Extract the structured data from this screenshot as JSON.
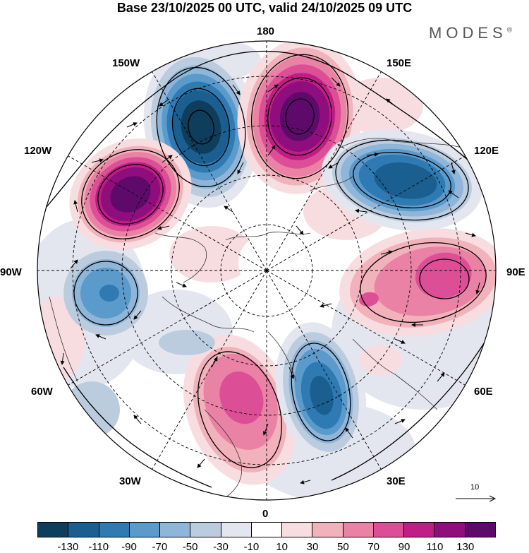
{
  "title": "Base 23/10/2025 00 UTC, valid 24/10/2025 09 UTC",
  "logo": {
    "text": "MODES",
    "mark": "®"
  },
  "longitude_labels": {
    "lon_180": "180",
    "lon_150e": "150E",
    "lon_120e": "120E",
    "lon_90e": "90E",
    "lon_60e": "60E",
    "lon_30e": "30E",
    "lon_0": "0",
    "lon_30w": "30W",
    "lon_60w": "60W",
    "lon_90w": "90W",
    "lon_120w": "120W",
    "lon_150w": "150W"
  },
  "wind_reference": {
    "label": "10"
  },
  "colorbar": {
    "colors": [
      "#0f3d5c",
      "#1a5f8f",
      "#2f7ab3",
      "#5b9bcb",
      "#8fb6d9",
      "#bcccdf",
      "#e4e6ef",
      "#ffffff",
      "#f8dde0",
      "#f2b2bb",
      "#ea82a5",
      "#dc4f97",
      "#c01d87",
      "#8f0d7c",
      "#5e0a6b"
    ],
    "ticks": [
      "-130",
      "-110",
      "-90",
      "-70",
      "-50",
      "-30",
      "-10",
      "10",
      "30",
      "50",
      "70",
      "90",
      "110",
      "130"
    ]
  },
  "anomalies": [
    {
      "name": "north-pacific-low",
      "value": -130
    },
    {
      "name": "bering-high",
      "value": 130
    },
    {
      "name": "alaska-high",
      "value": 130
    },
    {
      "name": "east-siberia-low",
      "value": -110
    },
    {
      "name": "central-asia-high",
      "value": 90
    },
    {
      "name": "hudson-low",
      "value": -90
    },
    {
      "name": "atlantic-high",
      "value": 90
    },
    {
      "name": "europe-low",
      "value": -110
    }
  ]
}
